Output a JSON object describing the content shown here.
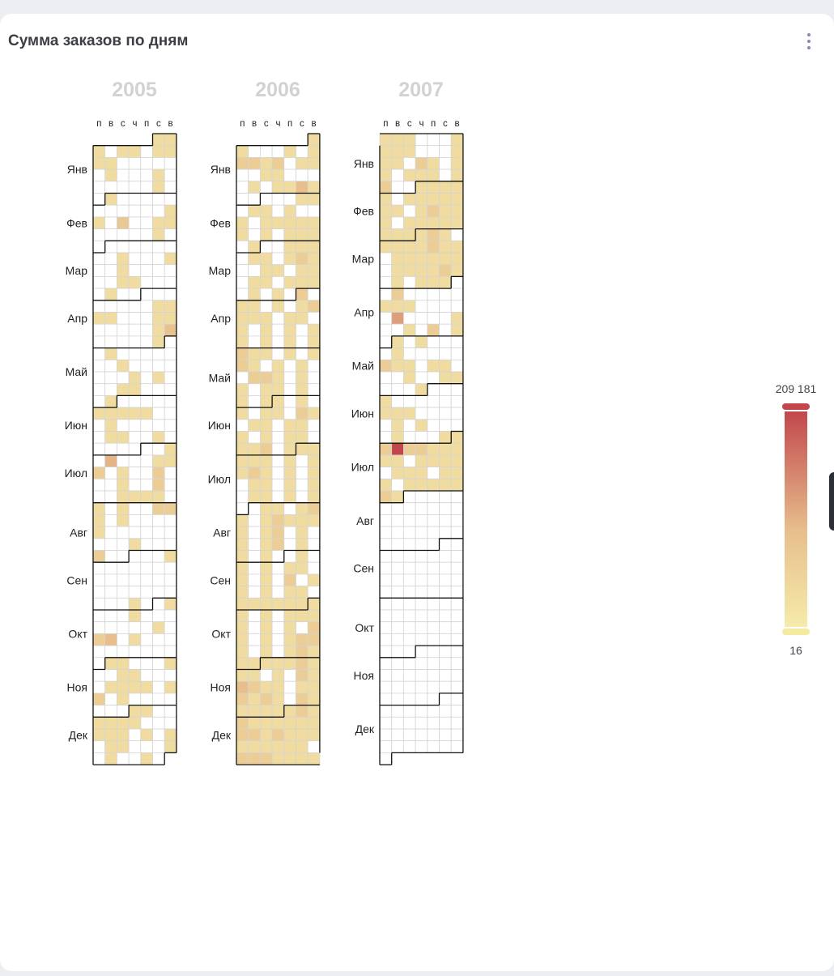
{
  "widget": {
    "title": "Сумма заказов по дням",
    "menu_icon": "more-vertical-icon"
  },
  "legend": {
    "max_label": "209 181",
    "min_label": "16",
    "color_low": "#f5ebaa",
    "color_mid": "#e7be8c",
    "color_high": "#c2474d"
  },
  "chart_data": {
    "type": "heatmap",
    "title": "Сумма заказов по дням",
    "subtype": "calendar",
    "value_range": [
      16,
      209181
    ],
    "weekday_labels": [
      "п",
      "в",
      "с",
      "ч",
      "п",
      "с",
      "в"
    ],
    "month_labels": [
      "Янв",
      "Фев",
      "Мар",
      "Апр",
      "Май",
      "Июн",
      "Июл",
      "Авг",
      "Сен",
      "Окт",
      "Ноя",
      "Дек"
    ],
    "years": [
      {
        "year": "2005",
        "data_range": [
          "2005-01-01",
          "2005-12-31"
        ],
        "data": {
          "2005-01-01": 0.15,
          "2005-01-02": 0.15,
          "2005-01-03": 0.15,
          "2005-01-05": 0.15,
          "2005-01-06": 0.15,
          "2005-01-08": 0.15,
          "2005-01-09": 0.15,
          "2005-01-10": 0.15,
          "2005-01-11": 0.15,
          "2005-01-18": 0.15,
          "2005-01-22": 0.15,
          "2005-01-29": 0.15,
          "2005-02-01": 0.15,
          "2005-02-13": 0.15,
          "2005-02-14": 0.15,
          "2005-02-16": 0.35,
          "2005-02-19": 0.15,
          "2005-02-20": 0.15,
          "2005-02-26": 0.15,
          "2005-03-09": 0.15,
          "2005-03-13": 0.15,
          "2005-03-16": 0.15,
          "2005-03-23": 0.15,
          "2005-03-24": 0.15,
          "2005-03-29": 0.15,
          "2005-04-09": 0.15,
          "2005-04-10": 0.15,
          "2005-04-11": 0.15,
          "2005-04-12": 0.15,
          "2005-04-16": 0.15,
          "2005-04-17": 0.15,
          "2005-04-23": 0.15,
          "2005-04-24": 0.4,
          "2005-04-30": 0.15,
          "2005-05-03": 0.15,
          "2005-05-11": 0.15,
          "2005-05-19": 0.15,
          "2005-05-21": 0.15,
          "2005-05-25": 0.15,
          "2005-05-26": 0.15,
          "2005-05-31": 0.15,
          "2005-06-06": 0.15,
          "2005-06-07": 0.15,
          "2005-06-08": 0.15,
          "2005-06-09": 0.15,
          "2005-06-10": 0.15,
          "2005-06-14": 0.15,
          "2005-06-21": 0.15,
          "2005-06-22": 0.15,
          "2005-06-25": 0.15,
          "2005-07-03": 0.15,
          "2005-07-05": 0.5,
          "2005-07-09": 0.15,
          "2005-07-10": 0.15,
          "2005-07-11": 0.3,
          "2005-07-13": 0.15,
          "2005-07-16": 0.3,
          "2005-07-20": 0.15,
          "2005-07-23": 0.3,
          "2005-07-27": 0.15,
          "2005-07-28": 0.15,
          "2005-07-29": 0.15,
          "2005-07-30": 0.15,
          "2005-08-01": 0.15,
          "2005-08-03": 0.15,
          "2005-08-06": 0.3,
          "2005-08-07": 0.3,
          "2005-08-08": 0.15,
          "2005-08-10": 0.15,
          "2005-08-15": 0.15,
          "2005-08-25": 0.15,
          "2005-08-29": 0.3,
          "2005-09-04": 0.15,
          "2005-09-29": 0.15,
          "2005-10-02": 0.15,
          "2005-10-06": 0.15,
          "2005-10-15": 0.15,
          "2005-10-17": 0.3,
          "2005-10-18": 0.45,
          "2005-10-20": 0.15,
          "2005-11-01": 0.15,
          "2005-11-02": 0.15,
          "2005-11-06": 0.15,
          "2005-11-09": 0.15,
          "2005-11-10": 0.15,
          "2005-11-15": 0.15,
          "2005-11-16": 0.15,
          "2005-11-17": 0.15,
          "2005-11-18": 0.15,
          "2005-11-20": 0.15,
          "2005-11-21": 0.3,
          "2005-11-23": 0.15,
          "2005-12-01": 0.15,
          "2005-12-02": 0.15,
          "2005-12-05": 0.15,
          "2005-12-06": 0.15,
          "2005-12-07": 0.15,
          "2005-12-08": 0.15,
          "2005-12-12": 0.15,
          "2005-12-13": 0.15,
          "2005-12-14": 0.15,
          "2005-12-16": 0.15,
          "2005-12-18": 0.15,
          "2005-12-20": 0.15,
          "2005-12-21": 0.15,
          "2005-12-25": 0.15,
          "2005-12-27": 0.15,
          "2005-12-30": 0.15
        }
      },
      {
        "year": "2006",
        "data_range": [
          "2006-01-01",
          "2006-12-31"
        ],
        "data": {
          "2006-01-01": 0.15,
          "2006-01-02": 0.15,
          "2006-01-06": 0.15,
          "2006-01-08": 0.15,
          "2006-01-09": 0.3,
          "2006-01-10": 0.3,
          "2006-01-11": 0.15,
          "2006-01-12": 0.3,
          "2006-01-14": 0.15,
          "2006-01-15": 0.15,
          "2006-01-18": 0.15,
          "2006-01-19": 0.15,
          "2006-01-24": 0.15,
          "2006-01-26": 0.15,
          "2006-01-27": 0.15,
          "2006-01-28": 0.45,
          "2006-01-29": 0.15,
          "2006-02-04": 0.15,
          "2006-02-05": 0.15,
          "2006-02-07": 0.15,
          "2006-02-08": 0.15,
          "2006-02-10": 0.15,
          "2006-02-13": 0.15,
          "2006-02-15": 0.15,
          "2006-02-16": 0.15,
          "2006-02-17": 0.15,
          "2006-02-18": 0.15,
          "2006-02-19": 0.15,
          "2006-02-20": 0.15,
          "2006-02-22": 0.15,
          "2006-02-24": 0.15,
          "2006-02-25": 0.15,
          "2006-02-26": 0.15,
          "2006-02-28": 0.15,
          "2006-03-03": 0.15,
          "2006-03-04": 0.15,
          "2006-03-05": 0.15,
          "2006-03-07": 0.15,
          "2006-03-08": 0.15,
          "2006-03-10": 0.15,
          "2006-03-11": 0.3,
          "2006-03-12": 0.15,
          "2006-03-15": 0.15,
          "2006-03-16": 0.15,
          "2006-03-18": 0.15,
          "2006-03-19": 0.15,
          "2006-03-21": 0.15,
          "2006-03-22": 0.15,
          "2006-03-24": 0.15,
          "2006-03-25": 0.15,
          "2006-03-26": 0.15,
          "2006-03-28": 0.15,
          "2006-03-30": 0.15,
          "2006-04-01": 0.3,
          "2006-04-03": 0.15,
          "2006-04-04": 0.15,
          "2006-04-06": 0.15,
          "2006-04-08": 0.15,
          "2006-04-09": 0.3,
          "2006-04-10": 0.15,
          "2006-04-11": 0.15,
          "2006-04-12": 0.15,
          "2006-04-14": 0.15,
          "2006-04-15": 0.15,
          "2006-04-17": 0.15,
          "2006-04-19": 0.15,
          "2006-04-21": 0.15,
          "2006-04-23": 0.15,
          "2006-04-24": 0.15,
          "2006-04-26": 0.15,
          "2006-04-28": 0.15,
          "2006-04-30": 0.15,
          "2006-05-01": 0.3,
          "2006-05-02": 0.15,
          "2006-05-03": 0.15,
          "2006-05-05": 0.15,
          "2006-05-07": 0.15,
          "2006-05-08": 0.3,
          "2006-05-09": 0.15,
          "2006-05-11": 0.15,
          "2006-05-13": 0.15,
          "2006-05-16": 0.3,
          "2006-05-17": 0.3,
          "2006-05-18": 0.15,
          "2006-05-20": 0.15,
          "2006-05-22": 0.15,
          "2006-05-24": 0.15,
          "2006-05-25": 0.15,
          "2006-05-27": 0.15,
          "2006-05-29": 0.15,
          "2006-05-31": 0.15,
          "2006-06-01": 0.15,
          "2006-06-03": 0.15,
          "2006-06-05": 0.15,
          "2006-06-07": 0.15,
          "2006-06-08": 0.15,
          "2006-06-10": 0.3,
          "2006-06-11": 0.15,
          "2006-06-13": 0.15,
          "2006-06-14": 0.15,
          "2006-06-16": 0.15,
          "2006-06-17": 0.15,
          "2006-06-19": 0.15,
          "2006-06-21": 0.15,
          "2006-06-23": 0.15,
          "2006-06-24": 0.15,
          "2006-06-26": 0.15,
          "2006-06-27": 0.15,
          "2006-06-28": 0.3,
          "2006-06-30": 0.15,
          "2006-07-01": 0.15,
          "2006-07-02": 0.15,
          "2006-07-03": 0.15,
          "2006-07-04": 0.15,
          "2006-07-05": 0.15,
          "2006-07-07": 0.15,
          "2006-07-09": 0.15,
          "2006-07-10": 0.15,
          "2006-07-11": 0.3,
          "2006-07-12": 0.15,
          "2006-07-14": 0.15,
          "2006-07-16": 0.15,
          "2006-07-18": 0.15,
          "2006-07-19": 0.15,
          "2006-07-21": 0.15,
          "2006-07-23": 0.15,
          "2006-07-25": 0.15,
          "2006-07-26": 0.15,
          "2006-07-28": 0.15,
          "2006-07-30": 0.15,
          "2006-08-02": 0.15,
          "2006-08-03": 0.15,
          "2006-08-05": 0.15,
          "2006-08-06": 0.3,
          "2006-08-07": 0.15,
          "2006-08-09": 0.15,
          "2006-08-10": 0.3,
          "2006-08-11": 0.15,
          "2006-08-12": 0.15,
          "2006-08-13": 0.15,
          "2006-08-14": 0.15,
          "2006-08-16": 0.15,
          "2006-08-17": 0.3,
          "2006-08-19": 0.15,
          "2006-08-21": 0.15,
          "2006-08-23": 0.15,
          "2006-08-24": 0.3,
          "2006-08-26": 0.15,
          "2006-08-28": 0.15,
          "2006-08-30": 0.15,
          "2006-09-02": 0.15,
          "2006-09-04": 0.15,
          "2006-09-06": 0.15,
          "2006-09-08": 0.15,
          "2006-09-09": 0.15,
          "2006-09-11": 0.15,
          "2006-09-13": 0.15,
          "2006-09-15": 0.3,
          "2006-09-17": 0.15,
          "2006-09-18": 0.15,
          "2006-09-20": 0.15,
          "2006-09-22": 0.15,
          "2006-09-23": 0.15,
          "2006-09-25": 0.15,
          "2006-09-26": 0.15,
          "2006-09-27": 0.15,
          "2006-09-28": 0.15,
          "2006-09-29": 0.15,
          "2006-09-30": 0.15,
          "2006-10-01": 0.15,
          "2006-10-02": 0.15,
          "2006-10-04": 0.15,
          "2006-10-06": 0.15,
          "2006-10-07": 0.15,
          "2006-10-08": 0.15,
          "2006-10-09": 0.15,
          "2006-10-11": 0.15,
          "2006-10-13": 0.15,
          "2006-10-15": 0.3,
          "2006-10-16": 0.15,
          "2006-10-18": 0.15,
          "2006-10-20": 0.15,
          "2006-10-21": 0.3,
          "2006-10-22": 0.3,
          "2006-10-23": 0.15,
          "2006-10-25": 0.15,
          "2006-10-27": 0.15,
          "2006-10-28": 0.3,
          "2006-10-29": 0.15,
          "2006-10-30": 0.15,
          "2006-10-31": 0.15,
          "2006-11-01": 0.15,
          "2006-11-02": 0.15,
          "2006-11-03": 0.15,
          "2006-11-04": 0.3,
          "2006-11-05": 0.15,
          "2006-11-06": 0.15,
          "2006-11-07": 0.15,
          "2006-11-09": 0.15,
          "2006-11-11": 0.3,
          "2006-11-12": 0.15,
          "2006-11-13": 0.45,
          "2006-11-14": 0.3,
          "2006-11-15": 0.15,
          "2006-11-16": 0.15,
          "2006-11-18": 0.15,
          "2006-11-19": 0.15,
          "2006-11-20": 0.3,
          "2006-11-21": 0.15,
          "2006-11-22": 0.3,
          "2006-11-23": 0.15,
          "2006-11-25": 0.3,
          "2006-11-26": 0.15,
          "2006-11-27": 0.15,
          "2006-11-28": 0.15,
          "2006-11-29": 0.15,
          "2006-11-30": 0.15,
          "2006-12-01": 0.15,
          "2006-12-02": 0.3,
          "2006-12-03": 0.15,
          "2006-12-04": 0.3,
          "2006-12-05": 0.15,
          "2006-12-06": 0.15,
          "2006-12-07": 0.15,
          "2006-12-08": 0.15,
          "2006-12-09": 0.15,
          "2006-12-10": 0.15,
          "2006-12-11": 0.3,
          "2006-12-12": 0.3,
          "2006-12-13": 0.15,
          "2006-12-14": 0.3,
          "2006-12-15": 0.15,
          "2006-12-16": 0.15,
          "2006-12-17": 0.15,
          "2006-12-18": 0.15,
          "2006-12-19": 0.15,
          "2006-12-20": 0.15,
          "2006-12-21": 0.15,
          "2006-12-22": 0.15,
          "2006-12-23": 0.15,
          "2006-12-25": 0.3,
          "2006-12-26": 0.3,
          "2006-12-27": 0.3,
          "2006-12-28": 0.15,
          "2006-12-29": 0.15,
          "2006-12-30": 0.15,
          "2006-12-31": 0.15
        }
      },
      {
        "year": "2007",
        "data_range": [
          "2007-01-01",
          "2007-07-31"
        ],
        "data": {
          "2007-01-01": 0.15,
          "2007-01-02": 0.15,
          "2007-01-03": 0.15,
          "2007-01-07": 0.15,
          "2007-01-08": 0.15,
          "2007-01-09": 0.15,
          "2007-01-10": 0.15,
          "2007-01-14": 0.15,
          "2007-01-15": 0.15,
          "2007-01-16": 0.15,
          "2007-01-18": 0.3,
          "2007-01-19": 0.15,
          "2007-01-21": 0.15,
          "2007-01-22": 0.15,
          "2007-01-24": 0.15,
          "2007-01-25": 0.15,
          "2007-01-26": 0.15,
          "2007-01-28": 0.15,
          "2007-01-29": 0.3,
          "2007-02-01": 0.15,
          "2007-02-02": 0.15,
          "2007-02-03": 0.15,
          "2007-02-04": 0.15,
          "2007-02-05": 0.15,
          "2007-02-07": 0.15,
          "2007-02-08": 0.15,
          "2007-02-09": 0.15,
          "2007-02-10": 0.15,
          "2007-02-11": 0.15,
          "2007-02-12": 0.15,
          "2007-02-13": 0.15,
          "2007-02-15": 0.15,
          "2007-02-16": 0.3,
          "2007-02-17": 0.15,
          "2007-02-18": 0.15,
          "2007-02-19": 0.15,
          "2007-02-21": 0.15,
          "2007-02-22": 0.15,
          "2007-02-23": 0.15,
          "2007-02-24": 0.15,
          "2007-02-25": 0.15,
          "2007-02-26": 0.15,
          "2007-02-27": 0.15,
          "2007-02-28": 0.15,
          "2007-03-01": 0.15,
          "2007-03-02": 0.3,
          "2007-03-03": 0.15,
          "2007-03-05": 0.15,
          "2007-03-06": 0.15,
          "2007-03-07": 0.15,
          "2007-03-08": 0.15,
          "2007-03-09": 0.3,
          "2007-03-10": 0.15,
          "2007-03-11": 0.15,
          "2007-03-13": 0.15,
          "2007-03-14": 0.15,
          "2007-03-15": 0.15,
          "2007-03-16": 0.15,
          "2007-03-17": 0.15,
          "2007-03-18": 0.15,
          "2007-03-20": 0.15,
          "2007-03-21": 0.15,
          "2007-03-22": 0.15,
          "2007-03-23": 0.15,
          "2007-03-24": 0.3,
          "2007-03-25": 0.15,
          "2007-03-27": 0.15,
          "2007-03-29": 0.15,
          "2007-03-30": 0.15,
          "2007-03-31": 0.15,
          "2007-04-03": 0.3,
          "2007-04-09": 0.15,
          "2007-04-10": 0.15,
          "2007-04-11": 0.15,
          "2007-04-17": 0.6,
          "2007-04-22": 0.15,
          "2007-04-25": 0.15,
          "2007-04-27": 0.3,
          "2007-04-29": 0.15,
          "2007-05-01": 0.15,
          "2007-05-03": 0.15,
          "2007-05-08": 0.15,
          "2007-05-14": 0.3,
          "2007-05-15": 0.15,
          "2007-05-16": 0.15,
          "2007-05-18": 0.15,
          "2007-05-19": 0.15,
          "2007-05-23": 0.15,
          "2007-05-26": 0.15,
          "2007-05-27": 0.15,
          "2007-05-31": 0.15,
          "2007-06-04": 0.15,
          "2007-06-11": 0.15,
          "2007-06-12": 0.15,
          "2007-06-13": 0.15,
          "2007-06-19": 0.15,
          "2007-06-21": 0.15,
          "2007-06-26": 0.15,
          "2007-06-30": 0.15,
          "2007-07-01": 0.15,
          "2007-07-02": 0.3,
          "2007-07-03": 1.0,
          "2007-07-04": 0.3,
          "2007-07-05": 0.3,
          "2007-07-06": 0.15,
          "2007-07-07": 0.15,
          "2007-07-08": 0.15,
          "2007-07-09": 0.15,
          "2007-07-10": 0.15,
          "2007-07-12": 0.15,
          "2007-07-13": 0.15,
          "2007-07-14": 0.15,
          "2007-07-15": 0.15,
          "2007-07-17": 0.15,
          "2007-07-18": 0.15,
          "2007-07-19": 0.15,
          "2007-07-21": 0.15,
          "2007-07-22": 0.15,
          "2007-07-23": 0.15,
          "2007-07-25": 0.15,
          "2007-07-26": 0.15,
          "2007-07-27": 0.15,
          "2007-07-28": 0.15,
          "2007-07-29": 0.15,
          "2007-07-30": 0.3,
          "2007-07-31": 0.15
        }
      }
    ]
  }
}
